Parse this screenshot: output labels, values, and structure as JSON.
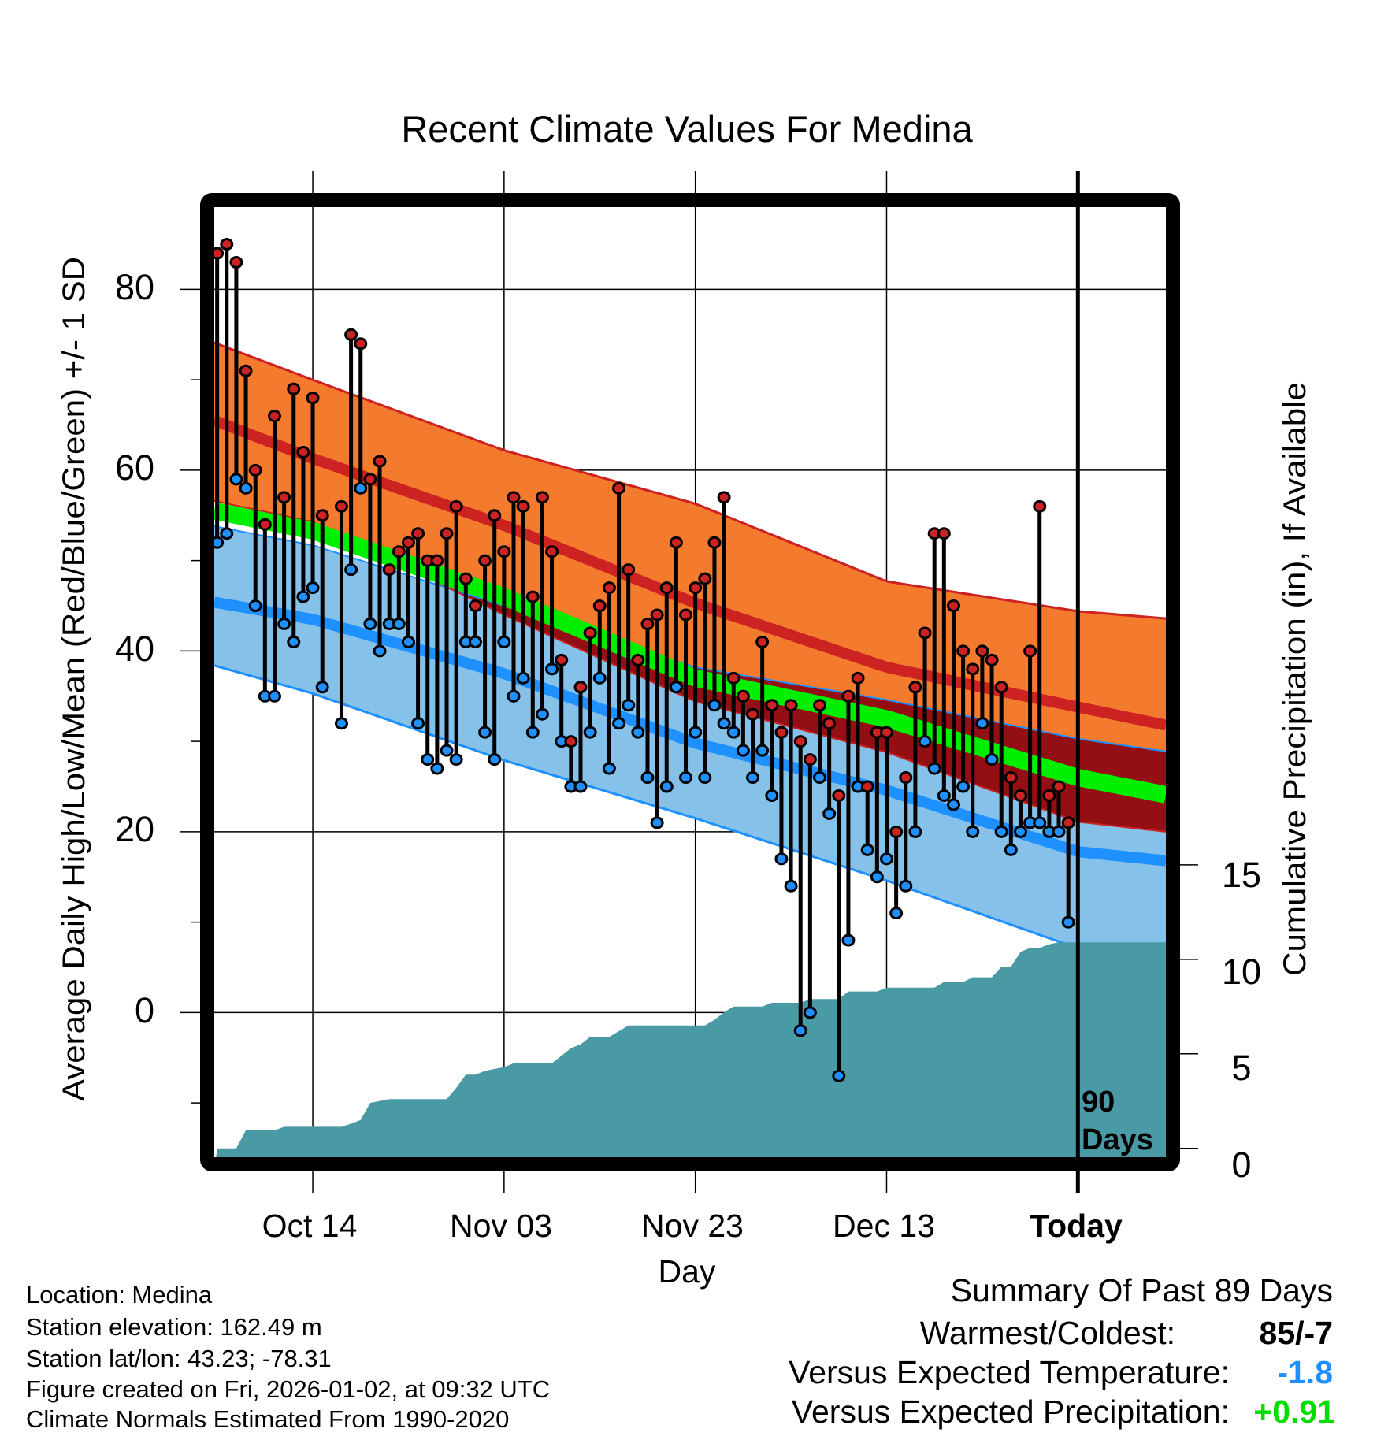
{
  "title": "Recent Climate Values For Medina",
  "axes": {
    "ylabel_left": "Average Daily High/Low/Mean (Red/Blue/Green) +/- 1 SD",
    "ylabel_right": "Cumulative Precipitation (in), If Available",
    "xlabel": "Day",
    "y_ticks": [
      "0",
      "20",
      "40",
      "60",
      "80"
    ],
    "y2_ticks": [
      "0",
      "5",
      "10",
      "15"
    ],
    "x_ticks": [
      "Oct 14",
      "Nov 03",
      "Nov 23",
      "Dec 13",
      "Today"
    ],
    "today_annotation_line1": "90",
    "today_annotation_line2": "Days"
  },
  "info": {
    "location": "Location: Medina",
    "elevation": "Station elevation: 162.49 m",
    "latlon": "Station lat/lon: 43.23; -78.31",
    "created": "Figure created on Fri, 2026-01-02, at 09:32 UTC",
    "normals": "Climate Normals Estimated From 1990-2020"
  },
  "summary": {
    "heading": "Summary Of Past 89 Days",
    "warmest_coldest_label": "Warmest/Coldest:",
    "warmest_coldest_value": "85/-7",
    "temp_label": "Versus Expected Temperature:",
    "temp_value": "-1.8",
    "precip_label": "Versus Expected Precipitation:",
    "precip_value": "+0.91",
    "temp_value_color": "#1e8fff",
    "precip_value_color": "#00dd00"
  },
  "colors": {
    "high_band": "#f47a2e",
    "high_line": "#cc2222",
    "overlap_band": "#930f14",
    "mean_band": "#00ee00",
    "low_band": "#85c1e9",
    "low_line": "#1e90ff",
    "precip_fill": "#4a9aa5",
    "high_dot": "#cc2222",
    "low_dot": "#1e90ff"
  },
  "chart_data": {
    "type": "line",
    "title": "Recent Climate Values For Medina",
    "xlabel": "Day",
    "ylabel": "Average Daily High/Low/Mean (Red/Blue/Green) +/- 1 SD",
    "y2label": "Cumulative Precipitation (in), If Available",
    "x_unit": "day index (0 = Oct 04, 90 = Today Jan 02)",
    "xlim": [
      -0.3,
      99.2
    ],
    "ylim": [
      -16.0,
      89.1
    ],
    "y2lim": [
      -0.47,
      49.8
    ],
    "grid": true,
    "x_tick_values": [
      10,
      30,
      50,
      70,
      90
    ],
    "y_tick_values": [
      0,
      20,
      40,
      60,
      80
    ],
    "y_minor_tick_values": [
      -10,
      10,
      30,
      50,
      70
    ],
    "y2_tick_values": [
      0,
      5,
      10,
      15
    ],
    "daily_high": [
      84,
      85,
      83,
      71,
      60,
      54,
      66,
      57,
      69,
      62,
      68,
      55,
      null,
      56,
      75,
      74,
      59,
      61,
      49,
      51,
      52,
      53,
      50,
      50,
      53,
      56,
      48,
      45,
      50,
      55,
      51,
      57,
      56,
      46,
      57,
      51,
      39,
      30,
      36,
      42,
      45,
      47,
      58,
      49,
      39,
      43,
      44,
      47,
      52,
      44,
      47,
      48,
      52,
      57,
      37,
      35,
      33,
      41,
      34,
      31,
      34,
      30,
      28,
      34,
      32,
      24,
      35,
      37,
      25,
      31,
      31,
      20,
      26,
      36,
      42,
      53,
      53,
      45,
      40,
      38,
      40,
      39,
      36,
      26,
      24,
      40,
      56,
      24,
      25,
      21
    ],
    "daily_low": [
      52,
      53,
      59,
      58,
      45,
      35,
      35,
      43,
      41,
      46,
      47,
      36,
      null,
      32,
      49,
      58,
      43,
      40,
      43,
      43,
      41,
      32,
      28,
      27,
      29,
      28,
      41,
      41,
      31,
      28,
      41,
      35,
      37,
      31,
      33,
      38,
      30,
      25,
      25,
      31,
      37,
      27,
      32,
      34,
      31,
      26,
      21,
      25,
      36,
      26,
      31,
      26,
      34,
      32,
      31,
      29,
      26,
      29,
      24,
      17,
      14,
      -2,
      0,
      26,
      22,
      -7,
      8,
      25,
      18,
      15,
      17,
      11,
      14,
      20,
      30,
      27,
      24,
      23,
      25,
      20,
      32,
      28,
      20,
      18,
      20,
      21,
      21,
      20,
      20,
      10
    ],
    "cumulative_precip": [
      0,
      0,
      0,
      0.95,
      0.95,
      0.95,
      0.95,
      1.14,
      1.14,
      1.14,
      1.14,
      1.14,
      1.14,
      1.14,
      1.3,
      1.5,
      2.4,
      2.5,
      2.6,
      2.6,
      2.6,
      2.6,
      2.6,
      2.6,
      2.6,
      3.2,
      3.9,
      3.9,
      4.1,
      4.2,
      4.3,
      4.5,
      4.5,
      4.5,
      4.5,
      4.5,
      4.9,
      5.3,
      5.5,
      5.9,
      5.9,
      5.9,
      6.2,
      6.5,
      6.5,
      6.5,
      6.5,
      6.5,
      6.5,
      6.5,
      6.5,
      6.5,
      6.8,
      7.2,
      7.5,
      7.5,
      7.5,
      7.5,
      7.7,
      7.7,
      7.7,
      7.7,
      7.9,
      7.9,
      7.9,
      7.9,
      8.3,
      8.3,
      8.3,
      8.3,
      8.5,
      8.5,
      8.5,
      8.5,
      8.5,
      8.5,
      8.8,
      8.8,
      8.8,
      9.05,
      9.05,
      9.05,
      9.6,
      9.6,
      10.4,
      10.6,
      10.6,
      10.8,
      10.9,
      10.9
    ],
    "normals": {
      "day": [
        -0.3,
        10,
        30,
        50,
        70,
        90,
        99.2
      ],
      "high_plus_sd": [
        74.1,
        70.0,
        62.2,
        56.3,
        47.7,
        44.4,
        43.6
      ],
      "high_normal": [
        65.5,
        61.3,
        53.9,
        45.3,
        38.2,
        33.8,
        31.8
      ],
      "high_minus_sd": [
        56.6,
        54.3,
        44.0,
        34.4,
        28.8,
        21.1,
        20.0
      ],
      "mean_normal": [
        55.5,
        53.3,
        46.0,
        37.0,
        32.5,
        26.0,
        24.1
      ],
      "low_plus_sd": [
        53.8,
        51.7,
        45.0,
        38.2,
        34.6,
        30.3,
        28.9
      ],
      "low_normal": [
        45.4,
        43.5,
        37.5,
        29.8,
        24.6,
        17.8,
        16.8
      ],
      "low_minus_sd": [
        38.4,
        35.3,
        27.9,
        21.5,
        14.6,
        7.1,
        6.1
      ]
    }
  }
}
